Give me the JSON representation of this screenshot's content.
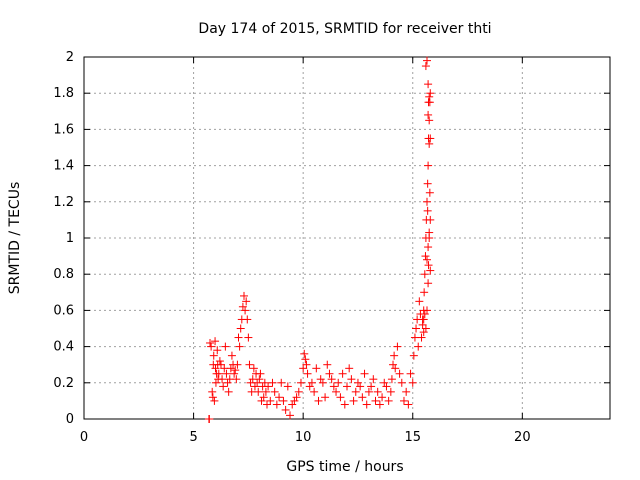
{
  "chart_data": {
    "type": "scatter",
    "title": "Day 174 of 2015, SRMTID for receiver thti",
    "xlabel": "GPS time / hours",
    "ylabel": "SRMTID / TECUs",
    "xlim": [
      0,
      24
    ],
    "ylim": [
      0,
      2
    ],
    "xticks": [
      0,
      5,
      10,
      15,
      20
    ],
    "yticks": [
      0,
      0.2,
      0.4,
      0.6,
      0.8,
      1,
      1.2,
      1.4,
      1.6,
      1.8,
      2
    ],
    "xtick_labels": [
      "0",
      "5",
      "10",
      "15",
      "20"
    ],
    "ytick_labels": [
      "0",
      "0.2",
      "0.4",
      "0.6",
      "0.8",
      "1",
      "1.2",
      "1.4",
      "1.6",
      "1.8",
      "2"
    ],
    "grid": true,
    "marker": "+",
    "series": [
      {
        "name": "SRMTID",
        "color": "#ff0000",
        "x": [
          5.7,
          5.72,
          5.75,
          5.8,
          5.85,
          5.88,
          5.9,
          5.92,
          5.95,
          5.98,
          6.0,
          6.02,
          6.05,
          6.08,
          6.1,
          6.12,
          6.15,
          6.2,
          6.25,
          6.3,
          6.35,
          6.4,
          6.45,
          6.5,
          6.55,
          6.6,
          6.65,
          6.7,
          6.75,
          6.8,
          6.85,
          6.9,
          6.95,
          7.0,
          7.05,
          7.1,
          7.15,
          7.2,
          7.25,
          7.3,
          7.35,
          7.4,
          7.45,
          7.5,
          7.55,
          7.6,
          7.65,
          7.7,
          7.75,
          7.8,
          7.85,
          7.9,
          7.95,
          8.0,
          8.05,
          8.1,
          8.15,
          8.2,
          8.25,
          8.3,
          8.35,
          8.4,
          8.5,
          8.6,
          8.7,
          8.8,
          8.9,
          9.0,
          9.1,
          9.2,
          9.3,
          9.4,
          9.5,
          9.6,
          9.7,
          9.8,
          9.9,
          10.0,
          10.05,
          10.1,
          10.15,
          10.2,
          10.3,
          10.4,
          10.5,
          10.6,
          10.7,
          10.8,
          10.9,
          11.0,
          11.1,
          11.2,
          11.3,
          11.4,
          11.5,
          11.6,
          11.7,
          11.8,
          11.9,
          12.0,
          12.1,
          12.2,
          12.3,
          12.4,
          12.5,
          12.6,
          12.7,
          12.8,
          12.9,
          13.0,
          13.1,
          13.2,
          13.3,
          13.4,
          13.5,
          13.6,
          13.7,
          13.8,
          13.9,
          14.0,
          14.05,
          14.1,
          14.15,
          14.2,
          14.3,
          14.4,
          14.5,
          14.6,
          14.7,
          14.8,
          14.9,
          15.0,
          15.05,
          15.1,
          15.15,
          15.2,
          15.25,
          15.3,
          15.35,
          15.4,
          15.45,
          15.5,
          15.52,
          15.55,
          15.58,
          15.6,
          15.62,
          15.65,
          15.68,
          15.7,
          15.72,
          15.75,
          15.78,
          15.8,
          15.6,
          15.65,
          15.7,
          15.72,
          15.75,
          15.7,
          15.75,
          15.8,
          15.78,
          15.8,
          15.75,
          15.7,
          15.65,
          15.72,
          15.68,
          15.75,
          15.8,
          15.7,
          15.65,
          15.5,
          15.55,
          15.6,
          15.5,
          15.45
        ],
        "y": [
          0.0,
          0.0,
          0.42,
          0.4,
          0.15,
          0.12,
          0.3,
          0.35,
          0.1,
          0.43,
          0.28,
          0.2,
          0.25,
          0.38,
          0.3,
          0.22,
          0.25,
          0.32,
          0.3,
          0.22,
          0.18,
          0.28,
          0.4,
          0.25,
          0.2,
          0.15,
          0.22,
          0.28,
          0.35,
          0.3,
          0.25,
          0.27,
          0.22,
          0.3,
          0.45,
          0.4,
          0.5,
          0.55,
          0.62,
          0.68,
          0.6,
          0.65,
          0.55,
          0.45,
          0.3,
          0.2,
          0.15,
          0.22,
          0.28,
          0.18,
          0.25,
          0.2,
          0.15,
          0.22,
          0.25,
          0.1,
          0.18,
          0.12,
          0.2,
          0.15,
          0.08,
          0.18,
          0.1,
          0.2,
          0.15,
          0.08,
          0.12,
          0.2,
          0.1,
          0.05,
          0.18,
          0.02,
          0.08,
          0.1,
          0.12,
          0.15,
          0.2,
          0.28,
          0.36,
          0.33,
          0.3,
          0.25,
          0.18,
          0.2,
          0.15,
          0.28,
          0.1,
          0.22,
          0.2,
          0.12,
          0.3,
          0.25,
          0.22,
          0.18,
          0.15,
          0.2,
          0.12,
          0.25,
          0.08,
          0.18,
          0.28,
          0.22,
          0.1,
          0.15,
          0.2,
          0.18,
          0.12,
          0.25,
          0.08,
          0.15,
          0.18,
          0.22,
          0.1,
          0.15,
          0.08,
          0.12,
          0.2,
          0.18,
          0.1,
          0.15,
          0.22,
          0.3,
          0.35,
          0.28,
          0.4,
          0.25,
          0.2,
          0.1,
          0.15,
          0.08,
          0.25,
          0.2,
          0.35,
          0.45,
          0.5,
          0.55,
          0.4,
          0.65,
          0.58,
          0.45,
          0.55,
          0.6,
          0.7,
          0.8,
          0.9,
          1.0,
          1.1,
          1.2,
          1.3,
          1.4,
          1.55,
          1.65,
          1.75,
          1.8,
          1.95,
          1.98,
          1.85,
          1.75,
          1.78,
          1.68,
          1.52,
          1.55,
          1.25,
          1.1,
          1.0,
          0.95,
          0.88,
          0.85,
          1.15,
          1.03,
          0.82,
          0.75,
          0.6,
          0.55,
          0.58,
          0.5,
          0.48,
          0.52
        ]
      }
    ]
  }
}
